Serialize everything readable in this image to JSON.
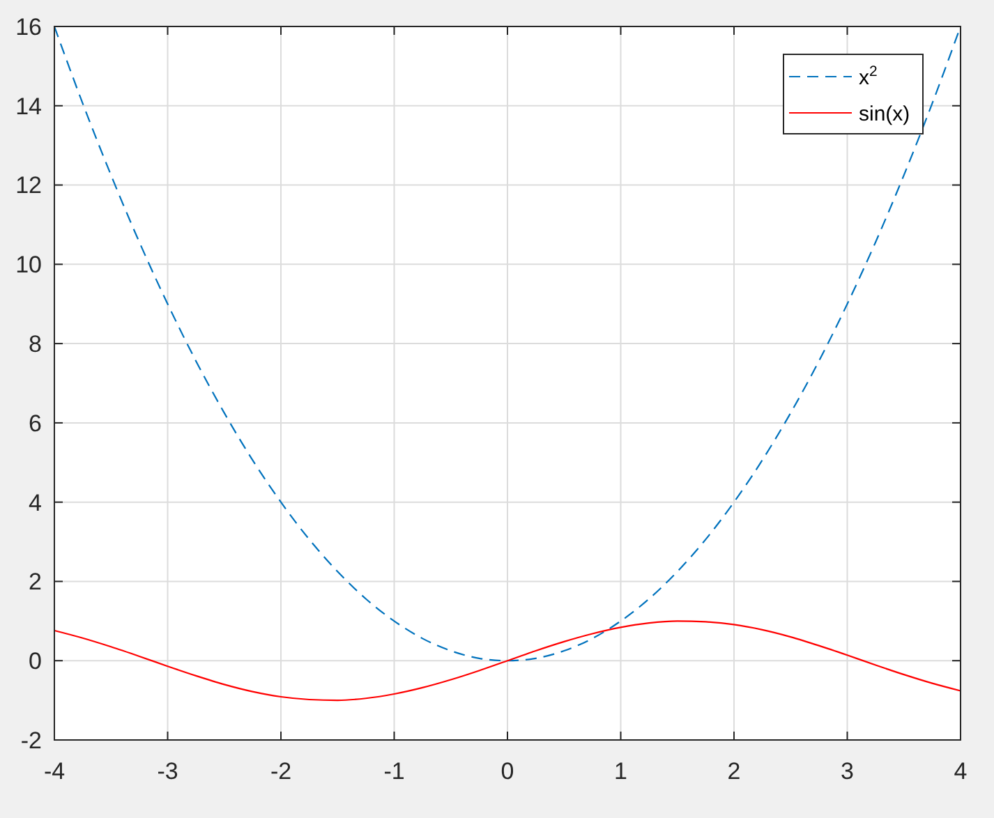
{
  "chart_data": {
    "type": "line",
    "x": [
      -4,
      -3.75,
      -3.5,
      -3.25,
      -3,
      -2.75,
      -2.5,
      -2.25,
      -2,
      -1.75,
      -1.5,
      -1.25,
      -1,
      -0.75,
      -0.5,
      -0.25,
      0,
      0.25,
      0.5,
      0.75,
      1,
      1.25,
      1.5,
      1.75,
      2,
      2.25,
      2.5,
      2.75,
      3,
      3.25,
      3.5,
      3.75,
      4
    ],
    "series": [
      {
        "name": "x$^{2}$",
        "color": "#0072bd",
        "line_style": "dashed",
        "values": [
          16,
          14.06,
          12.25,
          10.56,
          9,
          7.56,
          6.25,
          5.06,
          4,
          3.06,
          2.25,
          1.56,
          1,
          0.56,
          0.25,
          0.06,
          0,
          0.06,
          0.25,
          0.56,
          1,
          1.56,
          2.25,
          3.06,
          4,
          5.06,
          6.25,
          7.56,
          9,
          10.56,
          12.25,
          14.06,
          16
        ]
      },
      {
        "name": "sin(x)",
        "color": "#ff0000",
        "line_style": "solid",
        "values": [
          0.76,
          0.57,
          0.35,
          0.11,
          -0.14,
          -0.38,
          -0.6,
          -0.78,
          -0.91,
          -0.98,
          -1,
          -0.95,
          -0.84,
          -0.68,
          -0.48,
          -0.25,
          0,
          0.25,
          0.48,
          0.68,
          0.84,
          0.95,
          1,
          0.98,
          0.91,
          0.78,
          0.6,
          0.38,
          0.14,
          -0.11,
          -0.35,
          -0.57,
          -0.76
        ]
      }
    ],
    "xlim": [
      -4,
      4
    ],
    "xticks": [
      -4,
      -3,
      -2,
      -1,
      0,
      1,
      2,
      3,
      4
    ],
    "ylim": [
      -2,
      16
    ],
    "yticks": [
      -2,
      0,
      2,
      4,
      6,
      8,
      10,
      12,
      14,
      16
    ],
    "grid": true,
    "legend": "top right"
  }
}
